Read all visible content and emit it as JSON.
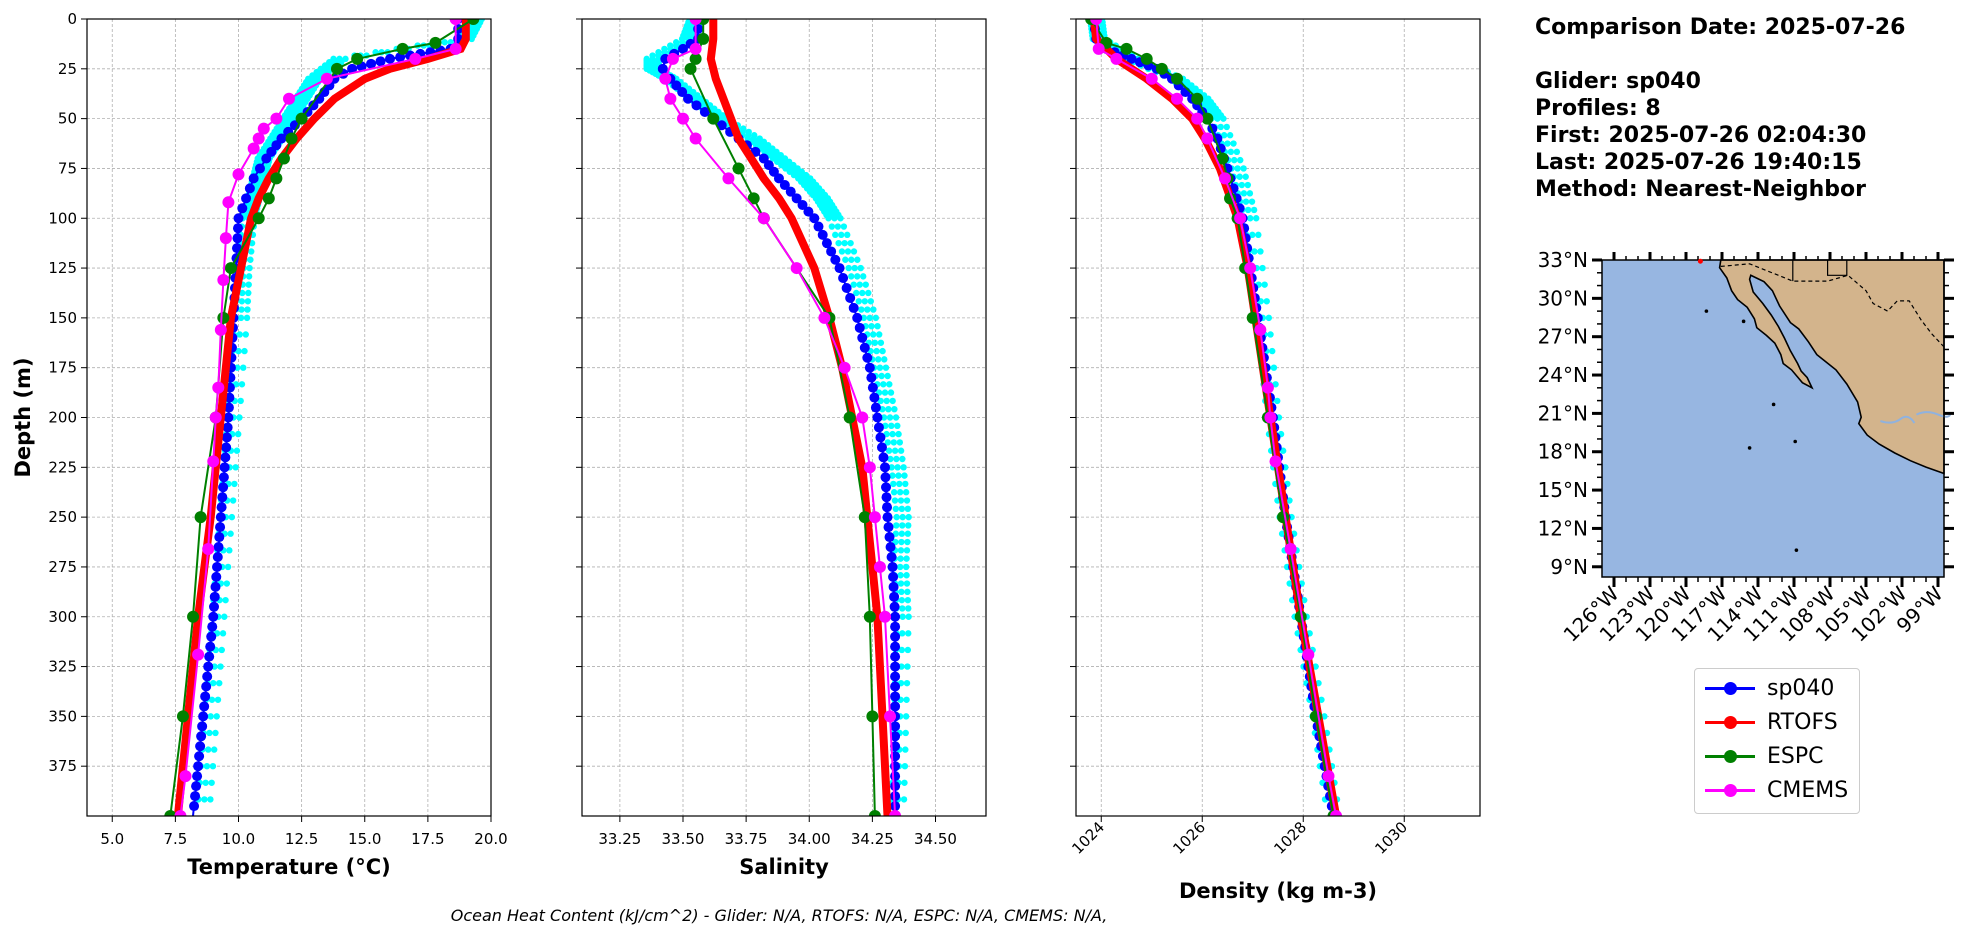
{
  "chart_data": [
    {
      "type": "line",
      "xlabel": "Temperature (°C)",
      "ylabel": "Depth (m)",
      "xlim": [
        4.0,
        20.0
      ],
      "ylim": [
        400,
        0
      ],
      "xticks": [
        5.0,
        7.5,
        10.0,
        12.5,
        15.0,
        17.5,
        20.0
      ],
      "xtick_labels": [
        "5.0",
        "7.5",
        "10.0",
        "12.5",
        "15.0",
        "17.5",
        "20.0"
      ],
      "yticks": [
        0,
        25,
        50,
        75,
        100,
        125,
        150,
        175,
        200,
        225,
        250,
        275,
        300,
        325,
        350,
        375
      ],
      "ytick_labels": [
        "0",
        "25",
        "50",
        "75",
        "100",
        "125",
        "150",
        "175",
        "200",
        "225",
        "250",
        "275",
        "300",
        "325",
        "350",
        "375"
      ],
      "grid": true,
      "series": [
        {
          "name": "sp040 (individual profiles)",
          "color": "#00ffff",
          "style": "points",
          "depth": [
            0,
            10,
            20,
            30,
            40,
            50,
            60,
            70,
            80,
            90,
            100,
            125,
            150,
            200,
            250,
            300,
            350,
            400
          ],
          "values": [
            19.4,
            19.0,
            14.0,
            13.0,
            12.5,
            12.0,
            11.5,
            11.0,
            10.8,
            10.6,
            10.4,
            10.2,
            10.1,
            9.8,
            9.5,
            9.2,
            8.9,
            8.6
          ]
        },
        {
          "name": "sp040",
          "color": "#0000ff",
          "style": "dots",
          "depth": [
            0,
            10,
            15,
            20,
            25,
            30,
            40,
            50,
            60,
            70,
            80,
            90,
            100,
            125,
            150,
            175,
            200,
            250,
            300,
            350,
            400
          ],
          "values": [
            18.7,
            18.7,
            18.4,
            16.0,
            14.5,
            13.8,
            13.2,
            12.5,
            11.7,
            11.1,
            10.6,
            10.3,
            10.0,
            9.9,
            9.8,
            9.7,
            9.6,
            9.3,
            9.0,
            8.6,
            8.2
          ]
        },
        {
          "name": "RTOFS",
          "color": "#ff0000",
          "style": "thick",
          "depth": [
            0,
            10,
            15,
            20,
            25,
            30,
            40,
            50,
            60,
            70,
            80,
            90,
            100,
            125,
            150,
            200,
            250,
            300,
            350,
            400
          ],
          "values": [
            19.0,
            19.0,
            18.8,
            17.5,
            16.0,
            15.0,
            13.8,
            13.0,
            12.3,
            11.7,
            11.2,
            10.8,
            10.5,
            10.1,
            9.7,
            9.3,
            8.9,
            8.4,
            8.0,
            7.6
          ]
        },
        {
          "name": "ESPC",
          "color": "#008000",
          "style": "markers",
          "depth": [
            0,
            12,
            15,
            20,
            25,
            50,
            60,
            70,
            80,
            90,
            100,
            125,
            150,
            200,
            250,
            300,
            350,
            400
          ],
          "values": [
            19.3,
            17.8,
            16.5,
            14.7,
            13.9,
            12.5,
            12.1,
            11.8,
            11.5,
            11.2,
            10.8,
            9.7,
            9.4,
            9.1,
            8.5,
            8.2,
            7.8,
            7.3
          ]
        },
        {
          "name": "CMEMS",
          "color": "#ff00ff",
          "style": "markers",
          "depth": [
            0,
            15,
            20,
            30,
            40,
            50,
            55,
            60,
            65,
            78,
            92,
            110,
            131,
            156,
            185,
            200,
            222,
            266,
            319,
            380,
            400
          ],
          "values": [
            18.6,
            18.6,
            17.0,
            13.5,
            12.0,
            11.5,
            11.0,
            10.8,
            10.6,
            10.0,
            9.6,
            9.5,
            9.4,
            9.3,
            9.2,
            9.1,
            9.0,
            8.8,
            8.4,
            7.9,
            7.7
          ]
        }
      ]
    },
    {
      "type": "line",
      "xlabel": "Salinity",
      "ylabel": "",
      "xlim": [
        33.1,
        34.7
      ],
      "ylim": [
        400,
        0
      ],
      "xticks": [
        33.25,
        33.5,
        33.75,
        34.0,
        34.25,
        34.5
      ],
      "xtick_labels": [
        "33.25",
        "33.50",
        "33.75",
        "34.00",
        "34.25",
        "34.50"
      ],
      "yticks": [
        0,
        25,
        50,
        75,
        100,
        125,
        150,
        175,
        200,
        225,
        250,
        275,
        300,
        325,
        350,
        375
      ],
      "ytick_labels": [],
      "grid": true,
      "series": [
        {
          "name": "sp040 (individual profiles)",
          "color": "#00ffff",
          "style": "points",
          "depth": [
            0,
            10,
            20,
            25,
            30,
            40,
            50,
            60,
            70,
            80,
            90,
            100,
            125,
            150,
            175,
            200,
            225,
            250,
            275,
            300,
            350,
            400
          ],
          "values": [
            33.55,
            33.52,
            33.38,
            33.38,
            33.45,
            33.55,
            33.65,
            33.78,
            33.88,
            33.98,
            34.05,
            34.1,
            34.18,
            34.24,
            34.28,
            34.32,
            34.35,
            34.37,
            34.36,
            34.37,
            34.36,
            34.35
          ]
        },
        {
          "name": "sp040",
          "color": "#0000ff",
          "style": "dots",
          "depth": [
            0,
            10,
            15,
            20,
            25,
            30,
            40,
            50,
            60,
            70,
            80,
            90,
            100,
            125,
            150,
            175,
            200,
            225,
            250,
            275,
            300,
            325,
            350,
            400
          ],
          "values": [
            33.56,
            33.56,
            33.5,
            33.43,
            33.42,
            33.45,
            33.52,
            33.62,
            33.72,
            33.82,
            33.88,
            33.95,
            34.02,
            34.12,
            34.19,
            34.24,
            34.27,
            34.3,
            34.31,
            34.33,
            34.34,
            34.34,
            34.34,
            34.34
          ]
        },
        {
          "name": "RTOFS",
          "color": "#ff0000",
          "style": "thick",
          "depth": [
            0,
            10,
            20,
            30,
            40,
            50,
            60,
            70,
            80,
            90,
            100,
            125,
            150,
            175,
            200,
            225,
            250,
            275,
            300,
            350,
            400
          ],
          "values": [
            33.62,
            33.62,
            33.61,
            33.63,
            33.66,
            33.69,
            33.72,
            33.77,
            33.82,
            33.88,
            33.93,
            34.02,
            34.08,
            34.13,
            34.17,
            34.21,
            34.23,
            34.25,
            34.27,
            34.29,
            34.31
          ]
        },
        {
          "name": "ESPC",
          "color": "#008000",
          "style": "markers",
          "depth": [
            0,
            10,
            20,
            25,
            50,
            75,
            90,
            100,
            150,
            200,
            250,
            300,
            350,
            400
          ],
          "values": [
            33.58,
            33.58,
            33.55,
            33.53,
            33.62,
            33.72,
            33.78,
            33.82,
            34.08,
            34.16,
            34.22,
            34.24,
            34.25,
            34.26
          ]
        },
        {
          "name": "CMEMS",
          "color": "#ff00ff",
          "style": "markers",
          "depth": [
            0,
            15,
            20,
            30,
            40,
            50,
            60,
            80,
            100,
            125,
            150,
            175,
            200,
            225,
            250,
            275,
            300,
            350,
            400
          ],
          "values": [
            33.55,
            33.55,
            33.46,
            33.43,
            33.45,
            33.5,
            33.55,
            33.68,
            33.82,
            33.95,
            34.06,
            34.14,
            34.21,
            34.24,
            34.26,
            34.28,
            34.3,
            34.32,
            34.34
          ]
        }
      ]
    },
    {
      "type": "line",
      "xlabel": "Density (kg m-3)",
      "ylabel": "",
      "xlim": [
        1023.5,
        1031.5
      ],
      "ylim": [
        400,
        0
      ],
      "xticks": [
        1024,
        1026,
        1028,
        1030
      ],
      "xtick_labels": [
        "1024",
        "1026",
        "1028",
        "1030"
      ],
      "yticks": [
        0,
        25,
        50,
        75,
        100,
        125,
        150,
        175,
        200,
        225,
        250,
        275,
        300,
        325,
        350,
        375
      ],
      "ytick_labels": [],
      "grid": true,
      "series": [
        {
          "name": "sp040 (individual profiles)",
          "color": "#00ffff",
          "style": "points",
          "depth": [
            0,
            10,
            20,
            30,
            40,
            50,
            75,
            100,
            150,
            200,
            250,
            300,
            350,
            400
          ],
          "values": [
            1023.9,
            1023.95,
            1024.6,
            1025.5,
            1026.0,
            1026.3,
            1026.7,
            1026.95,
            1027.2,
            1027.4,
            1027.65,
            1027.95,
            1028.3,
            1028.6
          ]
        },
        {
          "name": "sp040",
          "color": "#0000ff",
          "style": "dots",
          "depth": [
            0,
            10,
            15,
            20,
            25,
            30,
            40,
            50,
            60,
            75,
            100,
            125,
            150,
            175,
            200,
            250,
            300,
            350,
            400
          ],
          "values": [
            1023.85,
            1023.9,
            1024.1,
            1024.6,
            1025.1,
            1025.4,
            1025.8,
            1026.1,
            1026.3,
            1026.5,
            1026.8,
            1026.95,
            1027.1,
            1027.25,
            1027.4,
            1027.65,
            1027.95,
            1028.25,
            1028.6
          ]
        },
        {
          "name": "RTOFS",
          "color": "#ff0000",
          "style": "thick",
          "depth": [
            0,
            10,
            20,
            30,
            40,
            50,
            60,
            75,
            100,
            125,
            150,
            200,
            250,
            300,
            350,
            400
          ],
          "values": [
            1023.85,
            1023.9,
            1024.3,
            1024.9,
            1025.4,
            1025.8,
            1026.05,
            1026.35,
            1026.7,
            1026.9,
            1027.05,
            1027.35,
            1027.65,
            1027.95,
            1028.3,
            1028.65
          ]
        },
        {
          "name": "ESPC",
          "color": "#008000",
          "style": "markers",
          "depth": [
            0,
            12,
            15,
            20,
            25,
            30,
            40,
            50,
            70,
            80,
            90,
            100,
            125,
            150,
            200,
            250,
            300,
            350,
            400
          ],
          "values": [
            1023.8,
            1024.1,
            1024.5,
            1024.9,
            1025.2,
            1025.5,
            1025.9,
            1026.1,
            1026.4,
            1026.5,
            1026.55,
            1026.7,
            1026.85,
            1027.0,
            1027.3,
            1027.6,
            1027.95,
            1028.25,
            1028.6
          ]
        },
        {
          "name": "CMEMS",
          "color": "#ff00ff",
          "style": "markers",
          "depth": [
            0,
            15,
            20,
            30,
            40,
            50,
            60,
            80,
            100,
            125,
            156,
            185,
            200,
            222,
            266,
            319,
            380,
            400
          ],
          "values": [
            1023.9,
            1023.95,
            1024.3,
            1025.0,
            1025.5,
            1025.9,
            1026.1,
            1026.45,
            1026.75,
            1026.95,
            1027.15,
            1027.3,
            1027.35,
            1027.45,
            1027.75,
            1028.1,
            1028.5,
            1028.65
          ]
        }
      ]
    }
  ],
  "info": {
    "comparison_date": "Comparison Date: 2025-07-26",
    "glider": "Glider: sp040",
    "profiles": "Profiles: 8",
    "first": "First: 2025-07-26 02:04:30",
    "last": "Last: 2025-07-26 19:40:15",
    "method": "Method: Nearest-Neighbor"
  },
  "map": {
    "lat_labels": [
      "33°N",
      "30°N",
      "27°N",
      "24°N",
      "21°N",
      "18°N",
      "15°N",
      "12°N",
      "9°N"
    ],
    "lat_values": [
      33,
      30,
      27,
      24,
      21,
      18,
      15,
      12,
      9
    ],
    "lon_labels": [
      "126°W",
      "123°W",
      "120°W",
      "117°W",
      "114°W",
      "111°W",
      "108°W",
      "105°W",
      "102°W",
      "99°W"
    ],
    "lon_values": [
      -126,
      -123,
      -120,
      -117,
      -114,
      -111,
      -108,
      -105,
      -102,
      -99
    ],
    "lon_range": [
      -127,
      -98.5
    ],
    "lat_range": [
      8.2,
      33
    ],
    "ocean_color": "#97b6e1",
    "land_color": "#d3b48c"
  },
  "legend": {
    "items": [
      {
        "label": "sp040",
        "color": "#0000ff"
      },
      {
        "label": "RTOFS",
        "color": "#ff0000"
      },
      {
        "label": "ESPC",
        "color": "#008000"
      },
      {
        "label": "CMEMS",
        "color": "#ff00ff"
      }
    ]
  },
  "footer": "Ocean Heat Content (kJ/cm^2) - Glider: N/A,  RTOFS: N/A,  ESPC: N/A,  CMEMS: N/A,"
}
